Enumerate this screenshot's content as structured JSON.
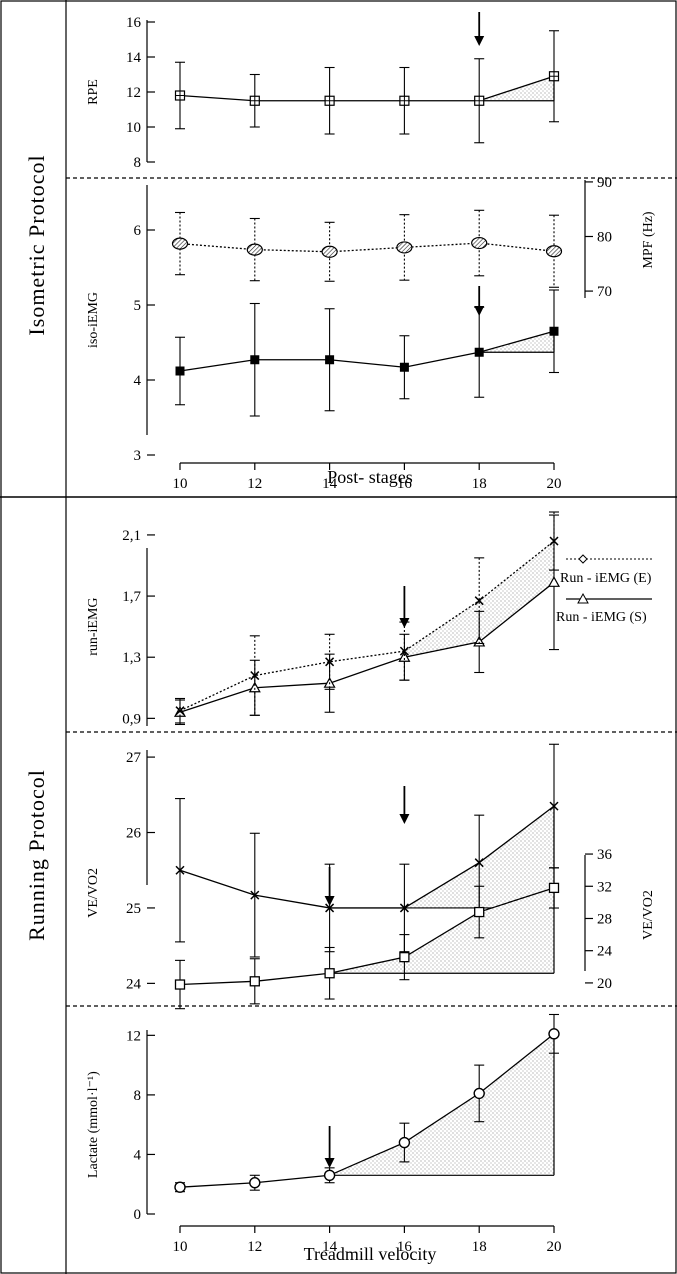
{
  "sections": {
    "isometric": "Isometric Protocol",
    "running": "Running Protocol"
  },
  "x_axes": {
    "top": {
      "label": "Post- stages",
      "ticks": [
        "10",
        "12",
        "14",
        "16",
        "18",
        "20"
      ]
    },
    "bottom": {
      "label": "Treadmill velocity",
      "ticks": [
        "10",
        "12",
        "14",
        "16",
        "18",
        "20"
      ]
    }
  },
  "chart_data": [
    {
      "type": "line",
      "panel": "rpe",
      "ylabel": "RPE",
      "ylim": [
        8,
        16
      ],
      "yticks": [
        8,
        10,
        12,
        14,
        16
      ],
      "x": [
        10,
        12,
        14,
        16,
        18,
        20
      ],
      "series": [
        {
          "marker": "square-cross",
          "line": "solid",
          "values": [
            11.8,
            11.5,
            11.5,
            11.5,
            11.5,
            12.9
          ],
          "errors": [
            1.9,
            1.5,
            1.9,
            1.9,
            2.4,
            2.6
          ]
        }
      ],
      "threshold_x": 18,
      "shaded_from_x": 18
    },
    {
      "type": "line",
      "panel": "iso-iemg",
      "ylabel": "iso-iEMG",
      "ylim": [
        2.8,
        7.0
      ],
      "yticks": [
        3,
        4,
        5,
        6
      ],
      "x": [
        10,
        12,
        14,
        16,
        18,
        20
      ],
      "series": [
        {
          "marker": "filled-square",
          "line": "solid",
          "values": [
            4.12,
            4.27,
            4.27,
            4.17,
            4.37,
            4.65
          ],
          "errors": [
            0.45,
            0.75,
            0.68,
            0.42,
            0.6,
            0.55
          ]
        }
      ],
      "secondary_axis": {
        "label": "MPF (Hz)",
        "ylim": [
          68,
          92
        ],
        "yticks": [
          70,
          80,
          90
        ],
        "series": [
          {
            "marker": "hatched-circle",
            "line": "dotted",
            "values": [
              78.7,
              77.6,
              77.2,
              78.0,
              78.8,
              77.3
            ],
            "errors": [
              5.7,
              5.7,
              5.4,
              6.0,
              6.0,
              6.6
            ]
          }
        ]
      },
      "threshold_x": 18,
      "shaded_from_x": 18
    },
    {
      "type": "line",
      "panel": "run-iemg",
      "ylabel": "run-iEMG",
      "ylim": [
        0.85,
        2.25
      ],
      "yticks": [
        "0,9",
        "1,3",
        "1,7",
        "2,1"
      ],
      "ytick_values": [
        0.9,
        1.3,
        1.7,
        2.1
      ],
      "x": [
        10,
        12,
        14,
        16,
        18,
        20
      ],
      "series": [
        {
          "name": "Run - iEMG (E)",
          "marker": "x",
          "line": "dotted",
          "values": [
            0.95,
            1.18,
            1.27,
            1.34,
            1.67,
            2.06
          ],
          "errors": [
            0.08,
            0.26,
            0.18,
            0.19,
            0.28,
            0.19
          ]
        },
        {
          "name": "Run - iEMG (S)",
          "marker": "triangle",
          "line": "solid",
          "values": [
            0.94,
            1.1,
            1.13,
            1.3,
            1.4,
            1.79
          ],
          "errors": [
            0.08,
            0.18,
            0.19,
            0.15,
            0.2,
            0.44
          ]
        }
      ],
      "threshold_x": 16,
      "shaded_from_x": 16
    },
    {
      "type": "line",
      "panel": "ve-vo2",
      "ylabel": "V_E/Vo_2",
      "ylim": [
        23.7,
        27.2
      ],
      "yticks": [
        24,
        25,
        26,
        27
      ],
      "x": [
        10,
        12,
        14,
        16,
        18,
        20
      ],
      "series": [
        {
          "marker": "x",
          "line": "solid",
          "values": [
            25.5,
            25.17,
            25.0,
            25.0,
            25.6,
            26.35
          ],
          "errors": [
            0.95,
            0.82,
            0.58,
            0.58,
            0.63,
            0.82
          ]
        }
      ],
      "secondary_axis": {
        "label": "V_E/Vo_2",
        "ylim": [
          18.5,
          37
        ],
        "yticks": [
          20,
          24,
          28,
          32,
          36
        ],
        "series": [
          {
            "marker": "open-square",
            "line": "solid",
            "values": [
              19.8,
              20.2,
              21.2,
              23.2,
              28.8,
              31.8
            ],
            "errors": [
              3.0,
              2.8,
              3.2,
              2.8,
              3.2,
              2.5
            ]
          }
        ]
      },
      "threshold_x": [
        16,
        14
      ],
      "shaded_from_x": [
        16,
        14
      ]
    },
    {
      "type": "line",
      "panel": "lactate",
      "ylabel": "Lactate (mmol·l⁻¹)",
      "ylim": [
        0,
        13.5
      ],
      "yticks": [
        0,
        4,
        8,
        12
      ],
      "x": [
        10,
        12,
        14,
        16,
        18,
        20
      ],
      "series": [
        {
          "marker": "open-circle",
          "line": "solid",
          "values": [
            1.8,
            2.1,
            2.6,
            4.8,
            8.1,
            12.1
          ],
          "errors": [
            0.3,
            0.5,
            0.5,
            1.3,
            1.9,
            1.3
          ]
        }
      ],
      "threshold_x": 14,
      "shaded_from_x": 14
    }
  ]
}
